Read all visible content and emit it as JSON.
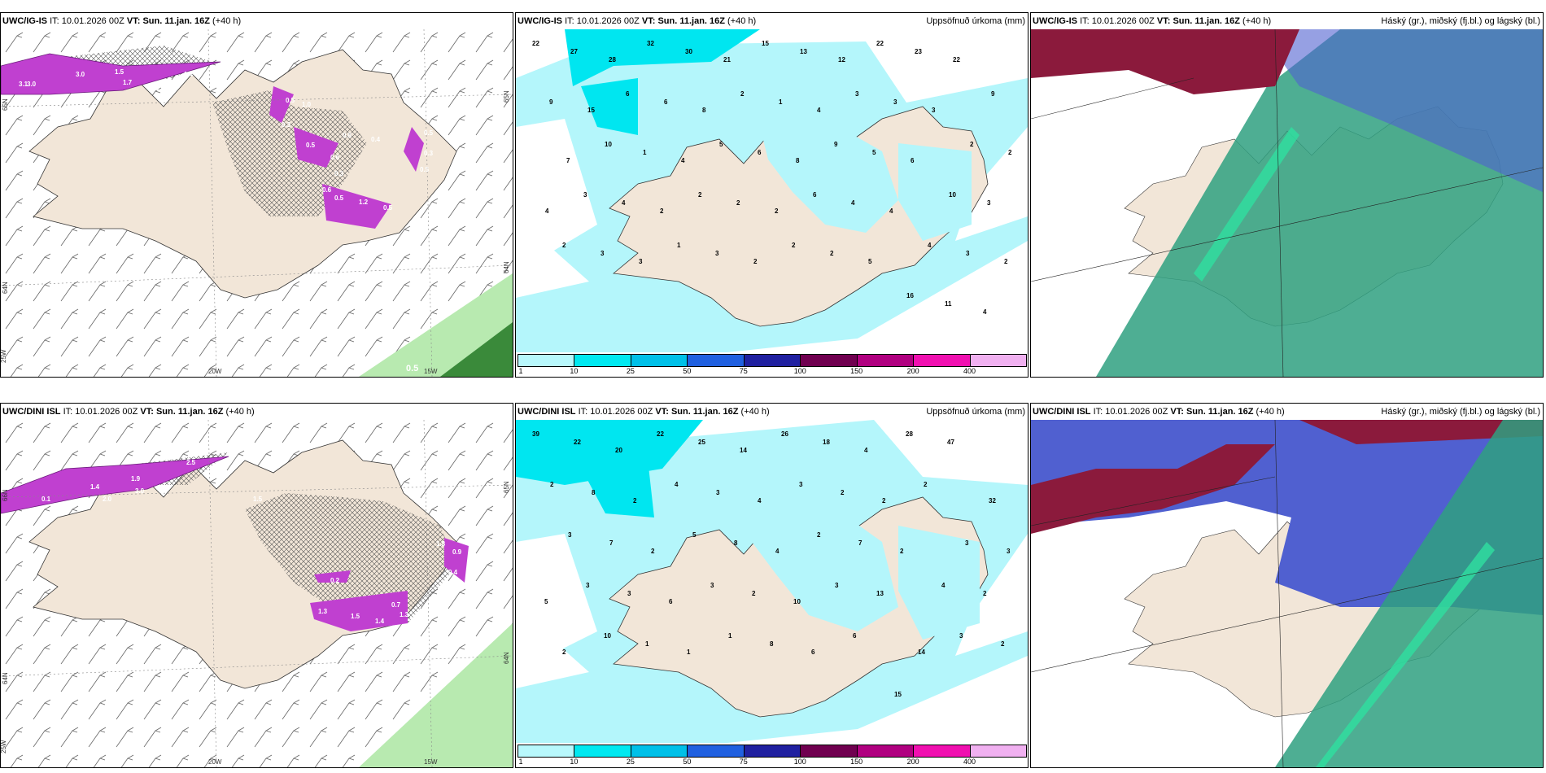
{
  "colors": {
    "land": "#f2e6d8",
    "cyan_light": "#b4f6fb",
    "cyan_mid": "#00e6f0",
    "purple": "#c040d0",
    "dark_red": "#8b1a3c",
    "blue_purple": "#5060d0",
    "teal_green": "#2fa080"
  },
  "panels": [
    {
      "model": "UWC/IG-IS",
      "it_label": "IT:",
      "it": "10.01.2026 00Z",
      "vt_label": "VT: Sun. 11.jan. 16Z",
      "lead": "(+40 h)",
      "right_title": ""
    },
    {
      "model": "UWC/IG-IS",
      "it_label": "IT:",
      "it": "10.01.2026 00Z",
      "vt_label": "VT: Sun. 11.jan. 16Z",
      "lead": "(+40 h)",
      "right_title": "Uppsöfnuð úrkoma (mm)"
    },
    {
      "model": "UWC/IG-IS",
      "it_label": "IT:",
      "it": "10.01.2026 00Z",
      "vt_label": "VT: Sun. 11.jan. 16Z",
      "lead": "(+40 h)",
      "right_title": "Háský (gr.), miðský (fj.bl.) og lágský (bl.)"
    },
    {
      "model": "UWC/DINI ISL",
      "it_label": "IT:",
      "it": "10.01.2026 00Z",
      "vt_label": "VT: Sun. 11.jan. 16Z",
      "lead": "(+40 h)",
      "right_title": ""
    },
    {
      "model": "UWC/DINI ISL",
      "it_label": "IT:",
      "it": "10.01.2026 00Z",
      "vt_label": "VT: Sun. 11.jan. 16Z",
      "lead": "(+40 h)",
      "right_title": "Uppsöfnuð úrkoma (mm)"
    },
    {
      "model": "UWC/DINI ISL",
      "it_label": "IT:",
      "it": "10.01.2026 00Z",
      "vt_label": "VT: Sun. 11.jan. 16Z",
      "lead": "(+40 h)",
      "right_title": "Háský (gr.), miðský (fj.bl.) og lágský (bl.)"
    }
  ],
  "axes_top": {
    "lat_upper": "65N",
    "lat_lower": "64N",
    "lat_right_upper": "65N",
    "lat_right_lower": "64N",
    "lon_left": "25W",
    "lon_mid": "20W",
    "lon_right": "15W"
  },
  "axes_bottom": {
    "lat_upper": "66N",
    "lat_lower": "64N",
    "lat_right_upper": "65N",
    "lat_right_lower": "64N",
    "lon_left": "25W",
    "lon_mid": "20W",
    "lon_right": "15W"
  },
  "wind_labels_top": [
    "3.1",
    "3.0",
    "3.0",
    "1.5",
    "1.7",
    "0.9",
    "1.4",
    "0.5",
    "1.0",
    "0.3",
    "0.5",
    "0.8",
    "0.4",
    "0.6",
    "0.3",
    "0.6",
    "0.5",
    "1.2",
    "0.5",
    "0.5",
    "0.3",
    "0.5"
  ],
  "wind_label_corner_top": "0.5",
  "wind_labels_bottom": [
    "0.1",
    "1.4",
    "2.0",
    "1.9",
    "3.0",
    "2.5",
    "1.5",
    "0.2",
    "0.7",
    "1.3",
    "1.5",
    "1.4",
    "1.3",
    "1.8",
    "0.9",
    "0.4"
  ],
  "precip_labels_top": [
    "22",
    "27",
    "28",
    "32",
    "30",
    "21",
    "15",
    "13",
    "12",
    "22",
    "23",
    "22",
    "9",
    "9",
    "15",
    "6",
    "6",
    "8",
    "2",
    "1",
    "4",
    "3",
    "3",
    "3",
    "2",
    "2",
    "7",
    "10",
    "1",
    "4",
    "5",
    "6",
    "8",
    "9",
    "5",
    "6",
    "10",
    "3",
    "4",
    "3",
    "4",
    "2",
    "2",
    "2",
    "2",
    "6",
    "4",
    "4",
    "4",
    "3",
    "2",
    "2",
    "3",
    "3",
    "1",
    "3",
    "2",
    "2",
    "2",
    "5",
    "16",
    "11",
    "4"
  ],
  "precip_labels_bottom": [
    "39",
    "22",
    "20",
    "22",
    "25",
    "14",
    "26",
    "18",
    "4",
    "28",
    "47",
    "32",
    "2",
    "8",
    "2",
    "4",
    "3",
    "4",
    "3",
    "2",
    "2",
    "2",
    "3",
    "3",
    "3",
    "7",
    "2",
    "5",
    "8",
    "4",
    "2",
    "7",
    "2",
    "4",
    "2",
    "5",
    "3",
    "3",
    "6",
    "3",
    "2",
    "10",
    "3",
    "13",
    "14",
    "3",
    "2",
    "2",
    "10",
    "1",
    "1",
    "1",
    "8",
    "6",
    "6",
    "15"
  ],
  "colorbar": {
    "ticks": [
      "1",
      "10",
      "25",
      "50",
      "75",
      "100",
      "150",
      "200",
      "400"
    ],
    "colors": [
      "#b8f8fc",
      "#00e8f0",
      "#00c0e8",
      "#2060e0",
      "#2020a0",
      "#700050",
      "#b00080",
      "#f010b0",
      "#f0b0f0"
    ]
  }
}
